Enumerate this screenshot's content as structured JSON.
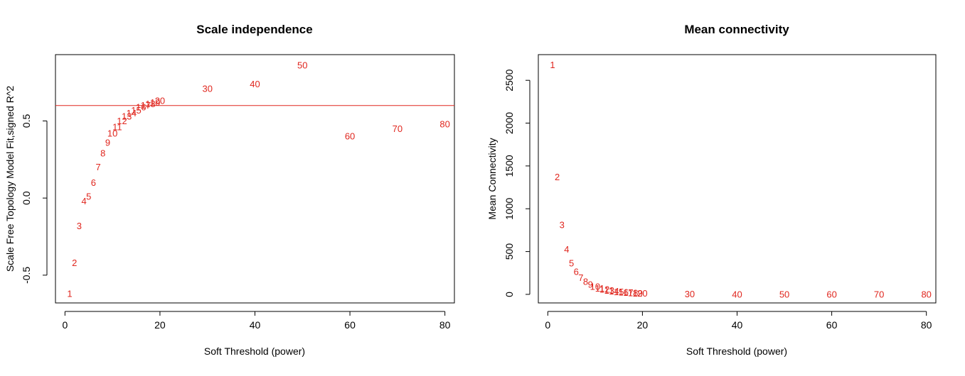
{
  "chart_data": [
    {
      "type": "scatter",
      "marker": "text-labels",
      "title": "Scale independence",
      "xlabel": "Soft Threshold (power)",
      "ylabel": "Scale Free Topology Model Fit,signed R^2",
      "xlim": [
        -2,
        82
      ],
      "ylim": [
        -0.68,
        0.93
      ],
      "xticks": [
        0,
        20,
        40,
        60,
        80
      ],
      "yticks": [
        -0.5,
        0.0,
        0.5
      ],
      "ytick_labels": [
        "-0.5",
        "0.0",
        "0.5"
      ],
      "hline": 0.6,
      "line_color": "#e0261e",
      "label_color": "#e0261e",
      "points": [
        {
          "label": "1",
          "x": 1,
          "y": -0.62
        },
        {
          "label": "2",
          "x": 2,
          "y": -0.42
        },
        {
          "label": "3",
          "x": 3,
          "y": -0.18
        },
        {
          "label": "4",
          "x": 4,
          "y": -0.02
        },
        {
          "label": "5",
          "x": 5,
          "y": 0.01
        },
        {
          "label": "6",
          "x": 6,
          "y": 0.1
        },
        {
          "label": "7",
          "x": 7,
          "y": 0.2
        },
        {
          "label": "8",
          "x": 8,
          "y": 0.29
        },
        {
          "label": "9",
          "x": 9,
          "y": 0.36
        },
        {
          "label": "10",
          "x": 10,
          "y": 0.42
        },
        {
          "label": "11",
          "x": 11,
          "y": 0.46
        },
        {
          "label": "12",
          "x": 12,
          "y": 0.5
        },
        {
          "label": "13",
          "x": 13,
          "y": 0.53
        },
        {
          "label": "14",
          "x": 14,
          "y": 0.55
        },
        {
          "label": "15",
          "x": 15,
          "y": 0.57
        },
        {
          "label": "16",
          "x": 16,
          "y": 0.59
        },
        {
          "label": "17",
          "x": 17,
          "y": 0.6
        },
        {
          "label": "18",
          "x": 18,
          "y": 0.61
        },
        {
          "label": "19",
          "x": 19,
          "y": 0.62
        },
        {
          "label": "20",
          "x": 20,
          "y": 0.63
        },
        {
          "label": "30",
          "x": 30,
          "y": 0.71
        },
        {
          "label": "40",
          "x": 40,
          "y": 0.74
        },
        {
          "label": "50",
          "x": 50,
          "y": 0.86
        },
        {
          "label": "60",
          "x": 60,
          "y": 0.4
        },
        {
          "label": "70",
          "x": 70,
          "y": 0.45
        },
        {
          "label": "80",
          "x": 80,
          "y": 0.48
        }
      ]
    },
    {
      "type": "scatter",
      "marker": "text-labels",
      "title": "Mean connectivity",
      "xlabel": "Soft Threshold (power)",
      "ylabel": "Mean Connectivity",
      "xlim": [
        -2,
        82
      ],
      "ylim": [
        -100,
        2800
      ],
      "xticks": [
        0,
        20,
        40,
        60,
        80
      ],
      "yticks": [
        0,
        500,
        1000,
        1500,
        2000,
        2500
      ],
      "label_color": "#e0261e",
      "points": [
        {
          "label": "1",
          "x": 1,
          "y": 2680
        },
        {
          "label": "2",
          "x": 2,
          "y": 1370
        },
        {
          "label": "3",
          "x": 3,
          "y": 810
        },
        {
          "label": "4",
          "x": 4,
          "y": 525
        },
        {
          "label": "5",
          "x": 5,
          "y": 365
        },
        {
          "label": "6",
          "x": 6,
          "y": 265
        },
        {
          "label": "7",
          "x": 7,
          "y": 195
        },
        {
          "label": "8",
          "x": 8,
          "y": 150
        },
        {
          "label": "9",
          "x": 9,
          "y": 115
        },
        {
          "label": "10",
          "x": 10,
          "y": 90
        },
        {
          "label": "11",
          "x": 11,
          "y": 70
        },
        {
          "label": "12",
          "x": 12,
          "y": 56
        },
        {
          "label": "13",
          "x": 13,
          "y": 45
        },
        {
          "label": "14",
          "x": 14,
          "y": 36
        },
        {
          "label": "15",
          "x": 15,
          "y": 29
        },
        {
          "label": "16",
          "x": 16,
          "y": 23
        },
        {
          "label": "17",
          "x": 17,
          "y": 19
        },
        {
          "label": "18",
          "x": 18,
          "y": 15
        },
        {
          "label": "19",
          "x": 19,
          "y": 12
        },
        {
          "label": "20",
          "x": 20,
          "y": 10
        },
        {
          "label": "30",
          "x": 30,
          "y": 2
        },
        {
          "label": "40",
          "x": 40,
          "y": 0.5
        },
        {
          "label": "50",
          "x": 50,
          "y": 0.2
        },
        {
          "label": "60",
          "x": 60,
          "y": 0.1
        },
        {
          "label": "70",
          "x": 70,
          "y": 0.05
        },
        {
          "label": "80",
          "x": 80,
          "y": 0.02
        }
      ]
    }
  ]
}
